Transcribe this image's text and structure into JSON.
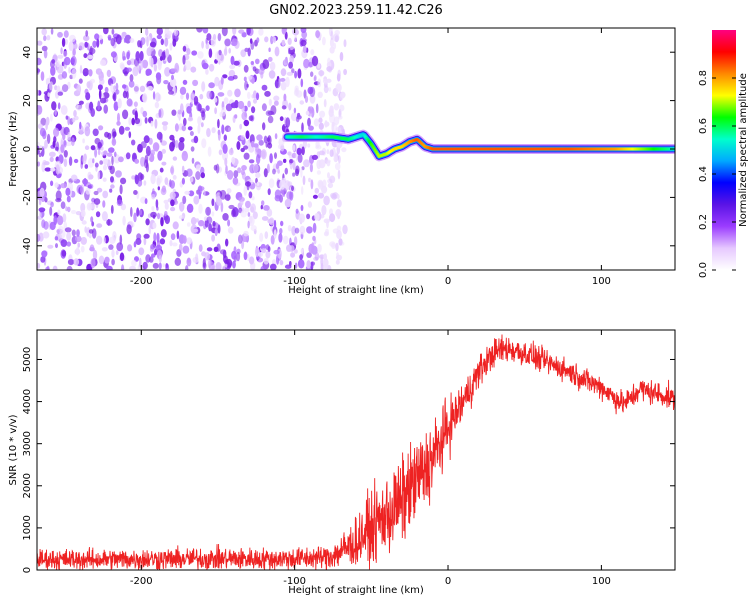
{
  "title": "GN02.2023.259.11.42.C26",
  "colors": {
    "snr_line": "#ee2222",
    "axis": "#000000",
    "background": "#ffffff",
    "colormap": [
      "#ffffff",
      "#e6c8ff",
      "#9b3cff",
      "#5a14e6",
      "#0000ff",
      "#00aaff",
      "#00ffcc",
      "#00ff00",
      "#ffff00",
      "#ff8800",
      "#ff0000",
      "#ff0080"
    ]
  },
  "chart_data": [
    {
      "type": "heatmap",
      "name": "spectrogram",
      "xlabel": "Height of straight line (km)",
      "ylabel": "Frequency (Hz)",
      "xlim": [
        -268,
        148
      ],
      "ylim": [
        -50,
        50
      ],
      "xticks": [
        -200,
        -100,
        0,
        100
      ],
      "xtick_labels": [
        "-200",
        "-100",
        "0",
        "100"
      ],
      "yticks": [
        -40,
        -20,
        0,
        20,
        40
      ],
      "ytick_labels": [
        "-40",
        "-20",
        "0",
        "20",
        "40"
      ],
      "noise_region": {
        "x_start": -268,
        "x_end": -85,
        "freq_min": -50,
        "freq_max": 50
      },
      "signal_ridge": {
        "x": [
          -105,
          -95,
          -85,
          -75,
          -65,
          -55,
          -50,
          -45,
          -40,
          -35,
          -30,
          -25,
          -20,
          -15,
          -10,
          0,
          20,
          50,
          80,
          110,
          148
        ],
        "freq_hz": [
          5,
          5,
          5,
          5,
          4,
          6,
          2,
          -3,
          -2,
          0,
          1,
          3,
          4,
          1,
          0,
          0,
          0,
          0,
          0,
          0,
          0
        ],
        "amplitude": [
          0.55,
          0.6,
          0.55,
          0.6,
          0.6,
          0.5,
          0.65,
          0.7,
          0.7,
          0.75,
          0.75,
          0.8,
          0.85,
          0.8,
          0.85,
          0.85,
          0.85,
          0.85,
          0.85,
          0.8,
          0.55
        ]
      },
      "colorbar": {
        "label": "Normalized spectral amplitude",
        "range": [
          0.0,
          1.0
        ],
        "ticks": [
          0.0,
          0.2,
          0.4,
          0.6,
          0.8
        ],
        "tick_labels": [
          "0.0",
          "0.2",
          "0.4",
          "0.6",
          "0.8"
        ]
      }
    },
    {
      "type": "line",
      "name": "snr",
      "xlabel": "Height of straight line (km)",
      "ylabel": "SNR (10 * v/v)",
      "xlim": [
        -268,
        148
      ],
      "ylim": [
        0,
        5700
      ],
      "xticks": [
        -200,
        -100,
        0,
        100
      ],
      "xtick_labels": [
        "-200",
        "-100",
        "0",
        "100"
      ],
      "yticks": [
        0,
        1000,
        2000,
        3000,
        4000,
        5000
      ],
      "ytick_labels": [
        "0",
        "1000",
        "2000",
        "3000",
        "4000",
        "5000"
      ],
      "series": [
        {
          "name": "SNR",
          "x": [
            -268,
            -250,
            -230,
            -200,
            -180,
            -150,
            -120,
            -100,
            -90,
            -80,
            -75,
            -70,
            -65,
            -60,
            -55,
            -50,
            -45,
            -40,
            -35,
            -30,
            -25,
            -20,
            -15,
            -10,
            -5,
            0,
            5,
            10,
            15,
            20,
            25,
            30,
            35,
            40,
            50,
            60,
            70,
            80,
            90,
            100,
            110,
            115,
            120,
            125,
            130,
            140,
            148
          ],
          "y": [
            250,
            250,
            250,
            260,
            260,
            270,
            260,
            270,
            280,
            300,
            350,
            450,
            550,
            650,
            850,
            1000,
            1150,
            1300,
            1450,
            1650,
            1900,
            2150,
            2350,
            2650,
            3000,
            3400,
            3700,
            4000,
            4350,
            4700,
            4950,
            5150,
            5250,
            5250,
            5150,
            5000,
            4850,
            4700,
            4500,
            4350,
            4050,
            3950,
            4100,
            4300,
            4250,
            4150,
            4050
          ],
          "noise_amplitude": [
            220,
            220,
            220,
            230,
            230,
            240,
            230,
            240,
            240,
            260,
            300,
            360,
            450,
            520,
            650,
            720,
            800,
            850,
            900,
            900,
            900,
            900,
            850,
            800,
            700,
            600,
            500,
            450,
            400,
            350,
            320,
            300,
            300,
            300,
            280,
            260,
            250,
            250,
            250,
            250,
            260,
            260,
            260,
            260,
            260,
            260,
            260
          ]
        }
      ]
    }
  ]
}
